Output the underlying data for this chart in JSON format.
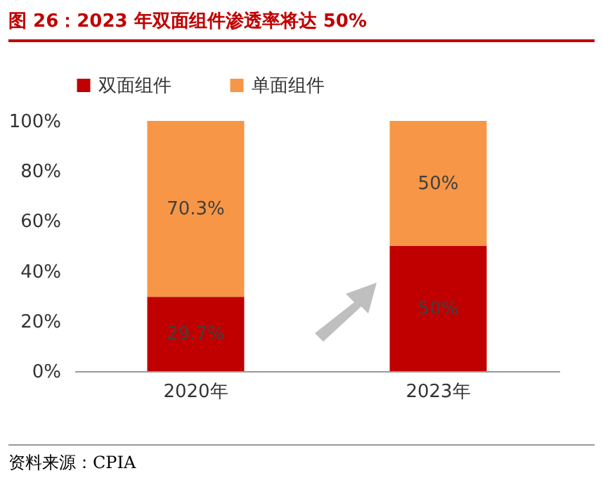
{
  "chart_data": {
    "type": "bar",
    "title": "图 26：2023 年双面组件渗透率将达 50%",
    "categories": [
      "2020年",
      "2023年"
    ],
    "stacked": true,
    "series": [
      {
        "name": "双面组件",
        "color": "#c00000",
        "values": [
          29.7,
          50
        ],
        "value_labels": [
          "29.7%",
          "50%"
        ]
      },
      {
        "name": "单面组件",
        "color": "#f79646",
        "values": [
          70.3,
          50
        ],
        "value_labels": [
          "70.3%",
          "50%"
        ]
      }
    ],
    "ylim": [
      0,
      100
    ],
    "yticks": [
      {
        "value": 0,
        "label": "0%"
      },
      {
        "value": 20,
        "label": "20%"
      },
      {
        "value": 40,
        "label": "40%"
      },
      {
        "value": 60,
        "label": "60%"
      },
      {
        "value": 80,
        "label": "80%"
      },
      {
        "value": 100,
        "label": "100%"
      }
    ],
    "legend": "top",
    "grid": false,
    "annotations": [
      "资料来源：CPIA"
    ]
  }
}
